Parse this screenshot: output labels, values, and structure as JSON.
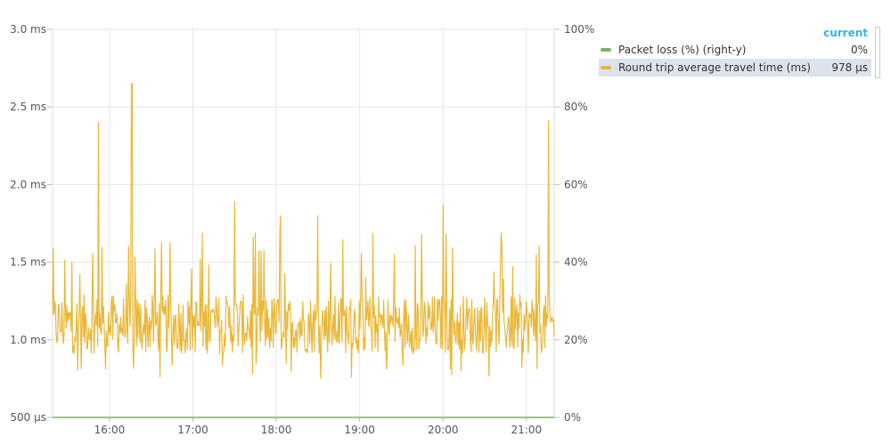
{
  "chart_data": {
    "type": "line",
    "x_ticks": [
      "16:00",
      "17:00",
      "18:00",
      "19:00",
      "20:00",
      "21:00"
    ],
    "x_range": [
      "15:19",
      "21:20"
    ],
    "y_left_ticks": [
      "500 µs",
      "1.0 ms",
      "1.5 ms",
      "2.0 ms",
      "2.5 ms",
      "3.0 ms"
    ],
    "y_left_values_ms": [
      0.5,
      1.0,
      1.5,
      2.0,
      2.5,
      3.0
    ],
    "y_left_range_ms": [
      0.5,
      3.0
    ],
    "y_right_ticks": [
      "0%",
      "20%",
      "40%",
      "60%",
      "80%",
      "100%"
    ],
    "y_right_range": [
      0,
      100
    ],
    "grid": true,
    "legend_placement": "top-right",
    "series": [
      {
        "name": "Packet loss (%) (right-y)",
        "color": "#7eb26d",
        "axis": "right",
        "constant_value": 0
      },
      {
        "name": "Round trip average travel time (ms)",
        "color": "#eab839",
        "axis": "left",
        "baseline_ms": 1.1,
        "spikes": [
          {
            "time": "15:52",
            "ms": 2.4
          },
          {
            "time": "16:16",
            "ms": 2.65
          },
          {
            "time": "17:30",
            "ms": 1.89
          },
          {
            "time": "18:03",
            "ms": 1.8
          },
          {
            "time": "18:30",
            "ms": 1.8
          },
          {
            "time": "20:00",
            "ms": 1.87
          },
          {
            "time": "21:16",
            "ms": 2.41
          }
        ],
        "min_ms": 0.75
      }
    ]
  },
  "legend": {
    "header": "current",
    "items": [
      {
        "label": "Packet loss (%) (right-y)",
        "value": "0%",
        "color": "#7eb26d"
      },
      {
        "label": "Round trip average travel time (ms)",
        "value": "978 µs",
        "color": "#eab839"
      }
    ]
  }
}
